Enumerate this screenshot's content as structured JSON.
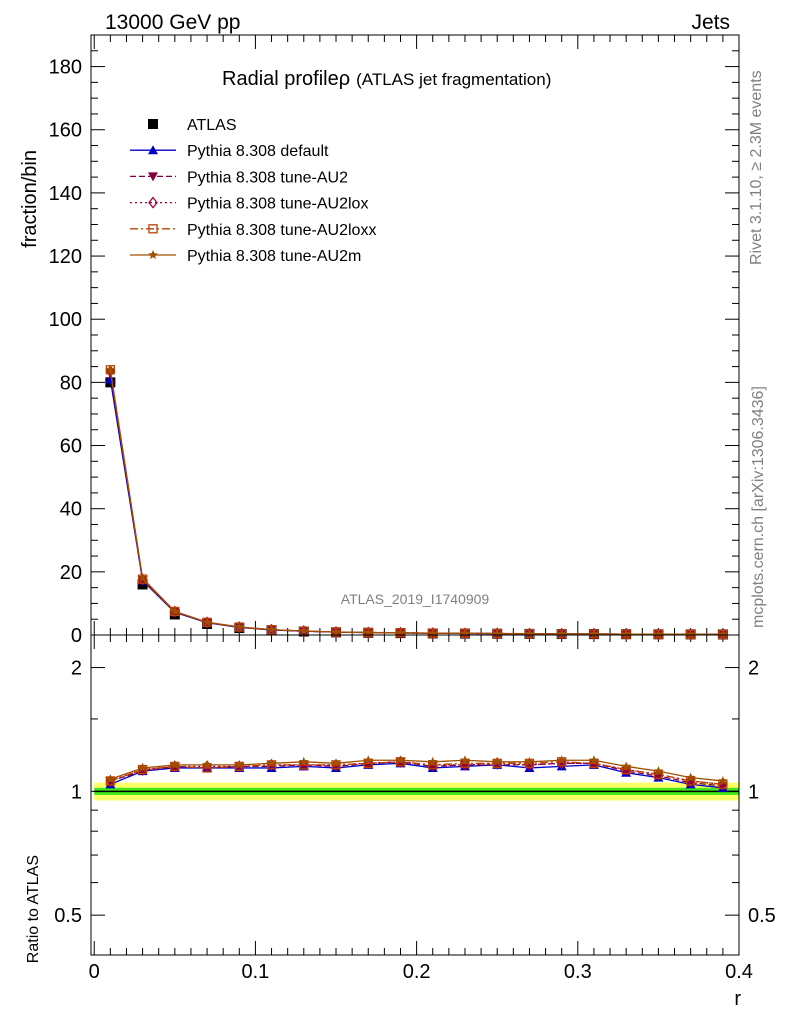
{
  "header": {
    "energy_label": "13000 GeV pp",
    "process_label": "Jets"
  },
  "side_labels": {
    "rivet": "Rivet 3.1.10, ≥ 2.3M events",
    "source": "mcplots.cern.ch [arXiv:1306.3436]"
  },
  "chart_data": [
    {
      "type": "line",
      "title": "Radial profileρ",
      "subtitle": "(ATLAS jet fragmentation)",
      "analysis_id": "ATLAS_2019_I1740909",
      "xlabel": "r",
      "ylabel": "fraction/bin",
      "xlim": [
        -0.002,
        0.4
      ],
      "ylim": [
        0,
        190
      ],
      "x_ticks": [
        0,
        0.1,
        0.2,
        0.3,
        0.4
      ],
      "x_tick_labels": [
        "0",
        "0.1",
        "0.2",
        "0.3",
        "0.4"
      ],
      "y_ticks": [
        0,
        20,
        40,
        60,
        80,
        100,
        120,
        140,
        160,
        180
      ],
      "y_tick_labels": [
        "0",
        "20",
        "40",
        "60",
        "80",
        "100",
        "120",
        "140",
        "160",
        "180"
      ],
      "legend_position": "top-left",
      "x": [
        0.01,
        0.03,
        0.05,
        0.07,
        0.09,
        0.11,
        0.13,
        0.15,
        0.17,
        0.19,
        0.21,
        0.23,
        0.25,
        0.27,
        0.29,
        0.31,
        0.33,
        0.35,
        0.37,
        0.39
      ],
      "series": [
        {
          "name": "ATLAS",
          "color": "#000000",
          "marker": "square",
          "line": "none",
          "values": [
            80,
            16,
            6.5,
            3.5,
            2.2,
            1.5,
            1.1,
            0.85,
            0.7,
            0.6,
            0.5,
            0.45,
            0.4,
            0.35,
            0.3,
            0.28,
            0.25,
            0.22,
            0.2,
            0.18
          ]
        },
        {
          "name": "Pythia 8.308 default",
          "color": "#0000cc",
          "marker": "triangle-up",
          "line": "solid",
          "values": [
            81,
            17.2,
            7.2,
            3.9,
            2.4,
            1.6,
            1.2,
            0.9,
            0.75,
            0.65,
            0.55,
            0.5,
            0.45,
            0.38,
            0.33,
            0.3,
            0.27,
            0.24,
            0.21,
            0.19
          ]
        },
        {
          "name": "Pythia 8.308 tune-AU2",
          "color": "#800040",
          "marker": "triangle-down",
          "line": "dashed",
          "values": [
            83,
            17.4,
            7.3,
            3.95,
            2.45,
            1.65,
            1.22,
            0.92,
            0.77,
            0.67,
            0.56,
            0.51,
            0.45,
            0.39,
            0.34,
            0.31,
            0.27,
            0.24,
            0.21,
            0.19
          ]
        },
        {
          "name": "Pythia 8.308 tune-AU2lox",
          "color": "#a0003c",
          "marker": "diamond-open",
          "line": "dotted",
          "values": [
            83.5,
            17.6,
            7.4,
            4.0,
            2.5,
            1.67,
            1.24,
            0.94,
            0.78,
            0.68,
            0.57,
            0.52,
            0.46,
            0.4,
            0.35,
            0.32,
            0.28,
            0.25,
            0.22,
            0.19
          ]
        },
        {
          "name": "Pythia 8.308 tune-AU2loxx",
          "color": "#c04000",
          "marker": "square-open",
          "line": "dashdot",
          "values": [
            84,
            17.7,
            7.45,
            4.02,
            2.52,
            1.68,
            1.25,
            0.95,
            0.79,
            0.69,
            0.58,
            0.52,
            0.46,
            0.4,
            0.35,
            0.32,
            0.28,
            0.25,
            0.22,
            0.19
          ]
        },
        {
          "name": "Pythia 8.308 tune-AU2m",
          "color": "#a05000",
          "marker": "star",
          "line": "solid",
          "values": [
            84,
            18,
            7.5,
            4.05,
            2.55,
            1.7,
            1.27,
            0.96,
            0.81,
            0.7,
            0.59,
            0.53,
            0.47,
            0.41,
            0.36,
            0.33,
            0.28,
            0.25,
            0.22,
            0.19
          ]
        }
      ]
    },
    {
      "type": "line",
      "ylabel": "Ratio to ATLAS",
      "xlabel": "r",
      "xlim": [
        -0.002,
        0.4
      ],
      "ylim": [
        0.4,
        2.4
      ],
      "log_y": true,
      "y_ticks": [
        0.5,
        1,
        2
      ],
      "y_tick_labels": [
        "0.5",
        "1",
        "2"
      ],
      "reference_line": 1.0,
      "uncertainty_band": {
        "inner": 0.02,
        "outer": 0.05,
        "inner_color": "#00e000",
        "outer_color": "#ffff66"
      },
      "x": [
        0.01,
        0.03,
        0.05,
        0.07,
        0.09,
        0.11,
        0.13,
        0.15,
        0.17,
        0.19,
        0.21,
        0.23,
        0.25,
        0.27,
        0.29,
        0.31,
        0.33,
        0.35,
        0.37,
        0.39
      ],
      "series": [
        {
          "name": "Pythia 8.308 default",
          "color": "#0000cc",
          "marker": "triangle-up",
          "values": [
            1.04,
            1.12,
            1.14,
            1.14,
            1.14,
            1.14,
            1.15,
            1.14,
            1.16,
            1.17,
            1.14,
            1.15,
            1.16,
            1.14,
            1.15,
            1.16,
            1.11,
            1.08,
            1.04,
            1.02
          ]
        },
        {
          "name": "Pythia 8.308 tune-AU2",
          "color": "#800040",
          "marker": "triangle-down",
          "values": [
            1.06,
            1.12,
            1.15,
            1.14,
            1.15,
            1.15,
            1.16,
            1.15,
            1.17,
            1.18,
            1.15,
            1.16,
            1.16,
            1.16,
            1.17,
            1.17,
            1.12,
            1.09,
            1.05,
            1.03
          ]
        },
        {
          "name": "Pythia 8.308 tune-AU2lox",
          "color": "#a0003c",
          "marker": "diamond-open",
          "values": [
            1.06,
            1.13,
            1.15,
            1.15,
            1.15,
            1.16,
            1.16,
            1.16,
            1.17,
            1.18,
            1.16,
            1.16,
            1.17,
            1.16,
            1.17,
            1.17,
            1.13,
            1.1,
            1.06,
            1.04
          ]
        },
        {
          "name": "Pythia 8.308 tune-AU2loxx",
          "color": "#c04000",
          "marker": "square-open",
          "values": [
            1.06,
            1.13,
            1.15,
            1.14,
            1.15,
            1.16,
            1.16,
            1.16,
            1.17,
            1.18,
            1.16,
            1.17,
            1.17,
            1.17,
            1.18,
            1.17,
            1.13,
            1.1,
            1.06,
            1.04
          ]
        },
        {
          "name": "Pythia 8.308 tune-AU2m",
          "color": "#a05000",
          "marker": "star",
          "values": [
            1.07,
            1.14,
            1.16,
            1.16,
            1.16,
            1.17,
            1.18,
            1.17,
            1.19,
            1.19,
            1.18,
            1.19,
            1.18,
            1.18,
            1.19,
            1.19,
            1.15,
            1.12,
            1.08,
            1.06
          ]
        }
      ]
    }
  ]
}
